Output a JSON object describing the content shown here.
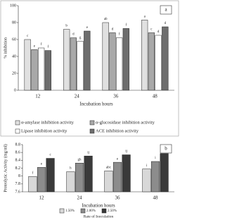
{
  "chart_data": [
    {
      "type": "bar",
      "panel": "a",
      "ylabel": "% inhibition",
      "xlabel": "Incubation hours",
      "categories": [
        "12",
        "24",
        "36",
        "48"
      ],
      "ylim": [
        0,
        100
      ],
      "yticks": [
        0,
        20,
        40,
        60,
        80,
        100
      ],
      "grid": false,
      "series": [
        {
          "name": "α-amylase inhibition activity",
          "color": "#e0e0e0",
          "values": [
            60,
            72,
            80,
            83
          ],
          "letters": [
            "c",
            "b",
            "ab",
            "a"
          ]
        },
        {
          "name": "α-glucosidase inhibition activity",
          "color": "#a8a8a8",
          "values": [
            48,
            62,
            68,
            68
          ],
          "letters": [
            "e",
            "d",
            "d",
            "c"
          ]
        },
        {
          "name": "Lipase inhibition activity",
          "color": "#ffffff",
          "values": [
            50,
            58,
            62,
            65
          ],
          "letters": [
            "f",
            "g",
            "f",
            "d"
          ]
        },
        {
          "name": "ACE inhibition activity",
          "color": "#6e6e6e",
          "values": [
            47,
            70,
            73,
            75
          ],
          "letters": [
            "f",
            "e",
            "f",
            "d"
          ]
        }
      ]
    },
    {
      "type": "bar",
      "panel": "b",
      "ylabel": "Proteolytic Activity (mg/ml)",
      "xlabel": "Incubation hours",
      "legend_title": "Rate of Inoculation",
      "categories": [
        "12",
        "24",
        "36",
        "48"
      ],
      "ylim": [
        7.6,
        8.8
      ],
      "yticks": [
        7.6,
        7.8,
        8,
        8.2,
        8.4,
        8.6,
        8.8
      ],
      "grid": false,
      "series": [
        {
          "name": "1.50%",
          "color": "#d8d8d8",
          "values": [
            7.99,
            8.11,
            8.13,
            8.18
          ],
          "letters": [
            "f",
            "h",
            "abc",
            "i"
          ]
        },
        {
          "name": "2.00%",
          "color": "#8c8c8c",
          "values": [
            8.22,
            8.33,
            8.35,
            8.37
          ],
          "letters": [
            "e",
            "gh",
            "e",
            "i"
          ]
        },
        {
          "name": "2.50%",
          "color": "#3a3a3a",
          "values": [
            8.45,
            8.51,
            8.54,
            8.57
          ],
          "letters": [
            "c",
            "ij",
            "ij",
            "ij"
          ]
        }
      ]
    }
  ]
}
